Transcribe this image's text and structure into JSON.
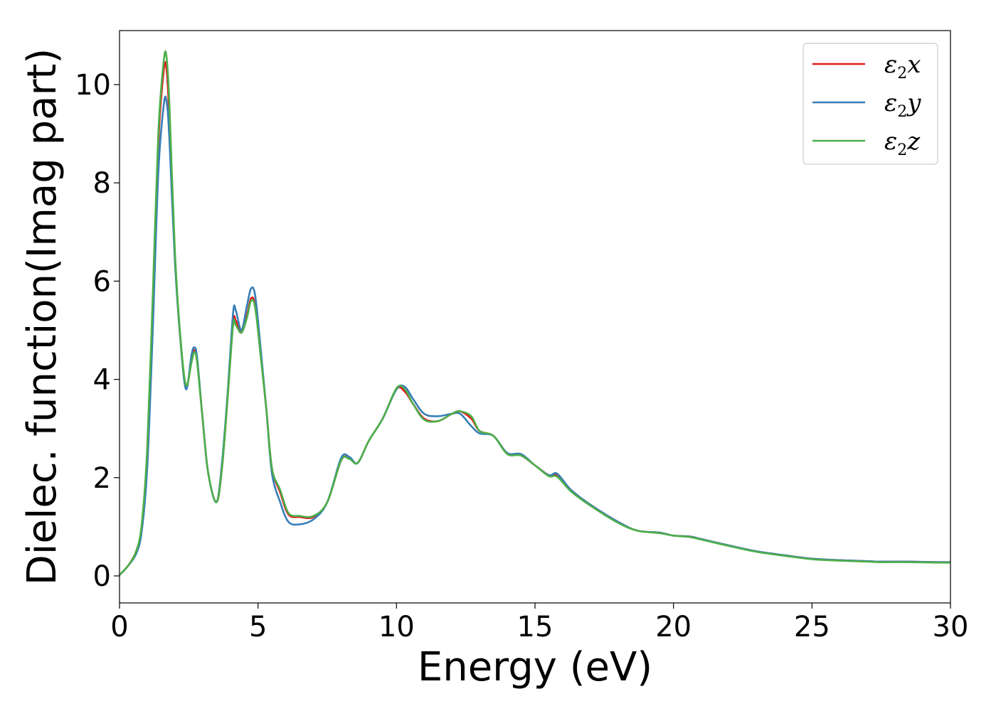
{
  "chart_data": {
    "type": "line",
    "title": "",
    "xlabel": "Energy (eV)",
    "ylabel": "Dielec. function(Imag part)",
    "xlim": [
      0,
      30
    ],
    "ylim": [
      -0.55,
      11.1
    ],
    "xticks": [
      "0",
      "5",
      "10",
      "15",
      "20",
      "25",
      "30"
    ],
    "yticks": [
      "0",
      "2",
      "4",
      "6",
      "8",
      "10"
    ],
    "grid": false,
    "legend_position": "top-right",
    "series": [
      {
        "name": "ε₂x",
        "legend": {
          "base": "ε",
          "sub": "2",
          "axis": "x"
        },
        "color": "#e41a1c",
        "x": [
          0,
          0.3,
          0.6,
          0.8,
          1.0,
          1.2,
          1.4,
          1.6,
          1.7,
          1.8,
          2.0,
          2.2,
          2.4,
          2.6,
          2.7,
          2.8,
          3.0,
          3.2,
          3.5,
          3.7,
          3.9,
          4.1,
          4.2,
          4.4,
          4.6,
          4.75,
          4.9,
          5.1,
          5.3,
          5.5,
          5.8,
          6.1,
          6.5,
          7.0,
          7.5,
          8.0,
          8.3,
          8.6,
          9.0,
          9.5,
          10.0,
          10.3,
          10.6,
          11.0,
          11.5,
          12.0,
          12.3,
          12.7,
          13.0,
          13.5,
          14.0,
          14.5,
          15.0,
          15.5,
          15.8,
          16.3,
          17.0,
          18.0,
          18.7,
          19.5,
          20.0,
          20.6,
          21.0,
          22.0,
          23.0,
          24.0,
          25.0,
          26.0,
          27.0,
          27.5,
          28.5,
          29.5,
          30.0
        ],
        "y": [
          0.02,
          0.2,
          0.5,
          1.0,
          2.5,
          5.5,
          8.8,
          10.3,
          10.3,
          9.3,
          6.5,
          4.8,
          3.85,
          4.4,
          4.6,
          4.4,
          3.2,
          2.1,
          1.5,
          2.2,
          3.6,
          5.15,
          5.2,
          4.95,
          5.3,
          5.65,
          5.5,
          4.5,
          3.4,
          2.2,
          1.7,
          1.25,
          1.2,
          1.2,
          1.5,
          2.35,
          2.4,
          2.3,
          2.75,
          3.2,
          3.8,
          3.75,
          3.5,
          3.2,
          3.15,
          3.3,
          3.35,
          3.2,
          2.95,
          2.85,
          2.5,
          2.45,
          2.25,
          2.05,
          2.05,
          1.75,
          1.45,
          1.1,
          0.92,
          0.88,
          0.82,
          0.8,
          0.75,
          0.62,
          0.5,
          0.42,
          0.35,
          0.32,
          0.3,
          0.29,
          0.29,
          0.28,
          0.28
        ]
      },
      {
        "name": "ε₂y",
        "legend": {
          "base": "ε",
          "sub": "2",
          "axis": "y"
        },
        "color": "#377eb8",
        "x": [
          0,
          0.3,
          0.6,
          0.8,
          1.0,
          1.2,
          1.4,
          1.6,
          1.7,
          1.8,
          2.0,
          2.2,
          2.4,
          2.6,
          2.7,
          2.8,
          3.0,
          3.2,
          3.5,
          3.7,
          3.9,
          4.1,
          4.2,
          4.4,
          4.6,
          4.75,
          4.9,
          5.1,
          5.3,
          5.5,
          5.8,
          6.1,
          6.5,
          7.0,
          7.5,
          8.0,
          8.3,
          8.6,
          9.0,
          9.5,
          10.0,
          10.3,
          10.6,
          11.0,
          11.5,
          12.0,
          12.3,
          12.7,
          13.0,
          13.5,
          14.0,
          14.5,
          15.0,
          15.5,
          15.8,
          16.3,
          17.0,
          18.0,
          18.7,
          19.5,
          20.0,
          20.6,
          21.0,
          22.0,
          23.0,
          24.0,
          25.0,
          26.0,
          27.0,
          27.5,
          28.5,
          29.5,
          30.0
        ],
        "y": [
          0.02,
          0.2,
          0.45,
          0.9,
          2.2,
          5.0,
          8.2,
          9.6,
          9.65,
          8.9,
          6.4,
          4.8,
          3.8,
          4.5,
          4.65,
          4.45,
          3.2,
          2.1,
          1.5,
          2.3,
          3.7,
          5.35,
          5.4,
          5.0,
          5.5,
          5.85,
          5.7,
          4.6,
          3.4,
          2.1,
          1.5,
          1.1,
          1.05,
          1.15,
          1.5,
          2.4,
          2.42,
          2.3,
          2.75,
          3.2,
          3.8,
          3.85,
          3.6,
          3.3,
          3.25,
          3.3,
          3.3,
          3.05,
          2.9,
          2.85,
          2.5,
          2.48,
          2.25,
          2.05,
          2.08,
          1.75,
          1.45,
          1.1,
          0.92,
          0.88,
          0.82,
          0.8,
          0.75,
          0.62,
          0.5,
          0.42,
          0.35,
          0.32,
          0.3,
          0.29,
          0.29,
          0.28,
          0.28
        ]
      },
      {
        "name": "ε₂z",
        "legend": {
          "base": "ε",
          "sub": "2",
          "axis": "z"
        },
        "color": "#4daf4a",
        "x": [
          0,
          0.3,
          0.6,
          0.8,
          1.0,
          1.2,
          1.4,
          1.6,
          1.7,
          1.8,
          2.0,
          2.2,
          2.4,
          2.6,
          2.7,
          2.8,
          3.0,
          3.2,
          3.5,
          3.7,
          3.9,
          4.1,
          4.2,
          4.4,
          4.6,
          4.75,
          4.9,
          5.1,
          5.3,
          5.5,
          5.8,
          6.1,
          6.5,
          7.0,
          7.5,
          8.0,
          8.3,
          8.6,
          9.0,
          9.5,
          10.0,
          10.3,
          10.6,
          11.0,
          11.5,
          12.0,
          12.3,
          12.7,
          13.0,
          13.5,
          14.0,
          14.5,
          15.0,
          15.5,
          15.8,
          16.3,
          17.0,
          18.0,
          18.7,
          19.5,
          20.0,
          20.6,
          21.0,
          22.0,
          23.0,
          24.0,
          25.0,
          26.0,
          27.0,
          27.5,
          28.5,
          29.5,
          30.0
        ],
        "y": [
          0.02,
          0.2,
          0.5,
          1.05,
          2.6,
          5.7,
          9.0,
          10.5,
          10.55,
          9.6,
          6.6,
          4.85,
          3.88,
          4.35,
          4.55,
          4.35,
          3.2,
          2.1,
          1.5,
          2.2,
          3.6,
          5.1,
          5.1,
          4.95,
          5.25,
          5.6,
          5.45,
          4.45,
          3.4,
          2.2,
          1.75,
          1.28,
          1.22,
          1.22,
          1.5,
          2.35,
          2.38,
          2.3,
          2.75,
          3.2,
          3.82,
          3.8,
          3.5,
          3.18,
          3.15,
          3.3,
          3.35,
          3.25,
          2.95,
          2.85,
          2.48,
          2.45,
          2.25,
          2.03,
          2.02,
          1.72,
          1.43,
          1.08,
          0.92,
          0.87,
          0.82,
          0.79,
          0.74,
          0.61,
          0.49,
          0.41,
          0.34,
          0.31,
          0.29,
          0.28,
          0.28,
          0.27,
          0.27
        ]
      }
    ]
  }
}
